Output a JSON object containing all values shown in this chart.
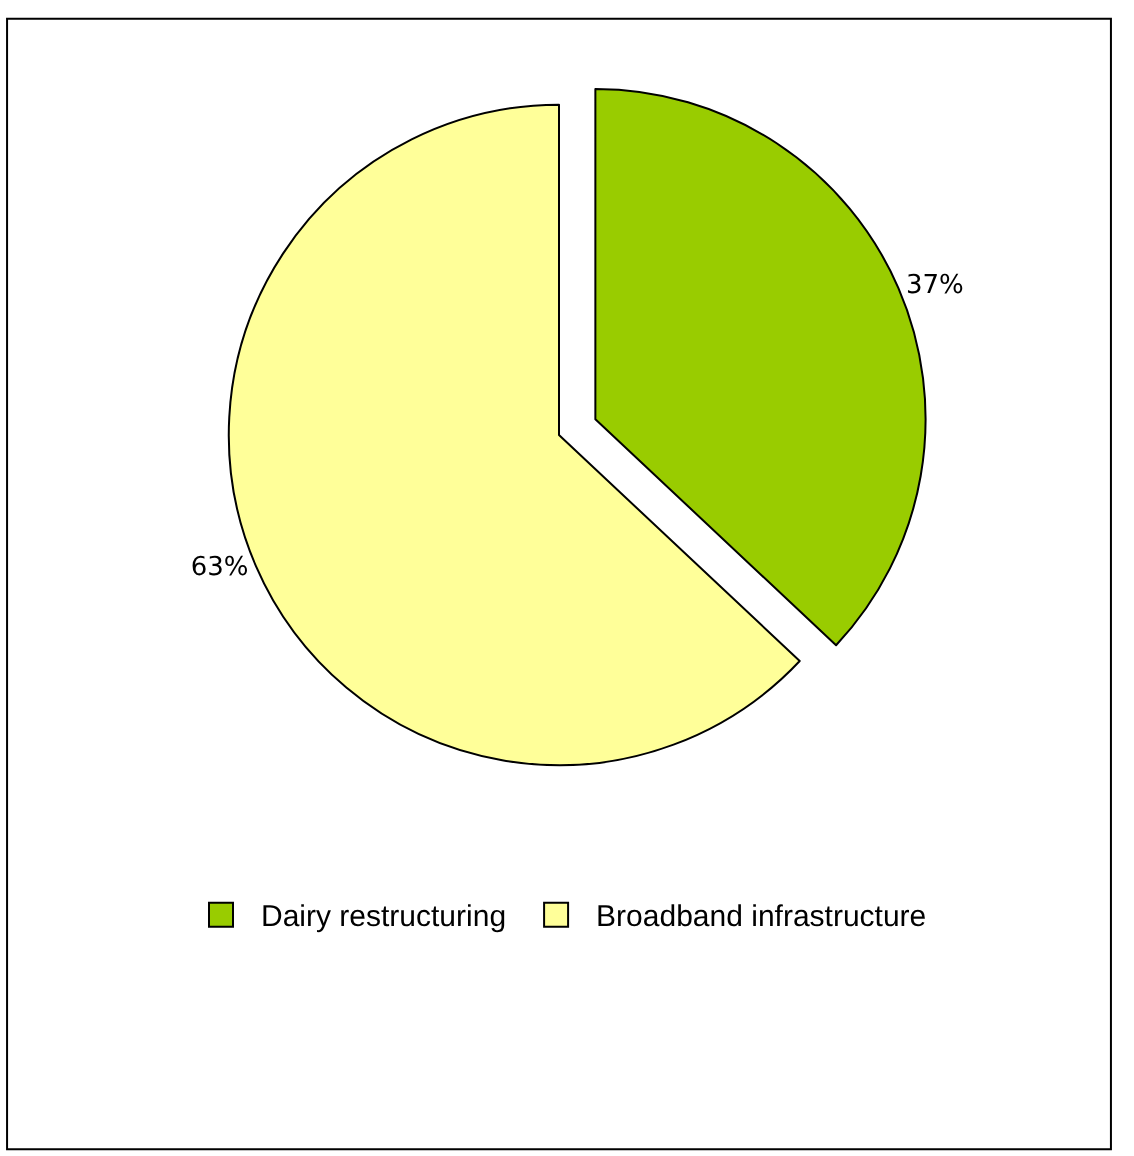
{
  "chart_data": {
    "type": "pie",
    "categories": [
      "Dairy restructuring",
      "Broadband infrastructure"
    ],
    "values": [
      37,
      63
    ],
    "colors": [
      "#99cc00",
      "#ffff99"
    ],
    "value_labels": [
      "37%",
      "63%"
    ],
    "legend": "bottom"
  }
}
